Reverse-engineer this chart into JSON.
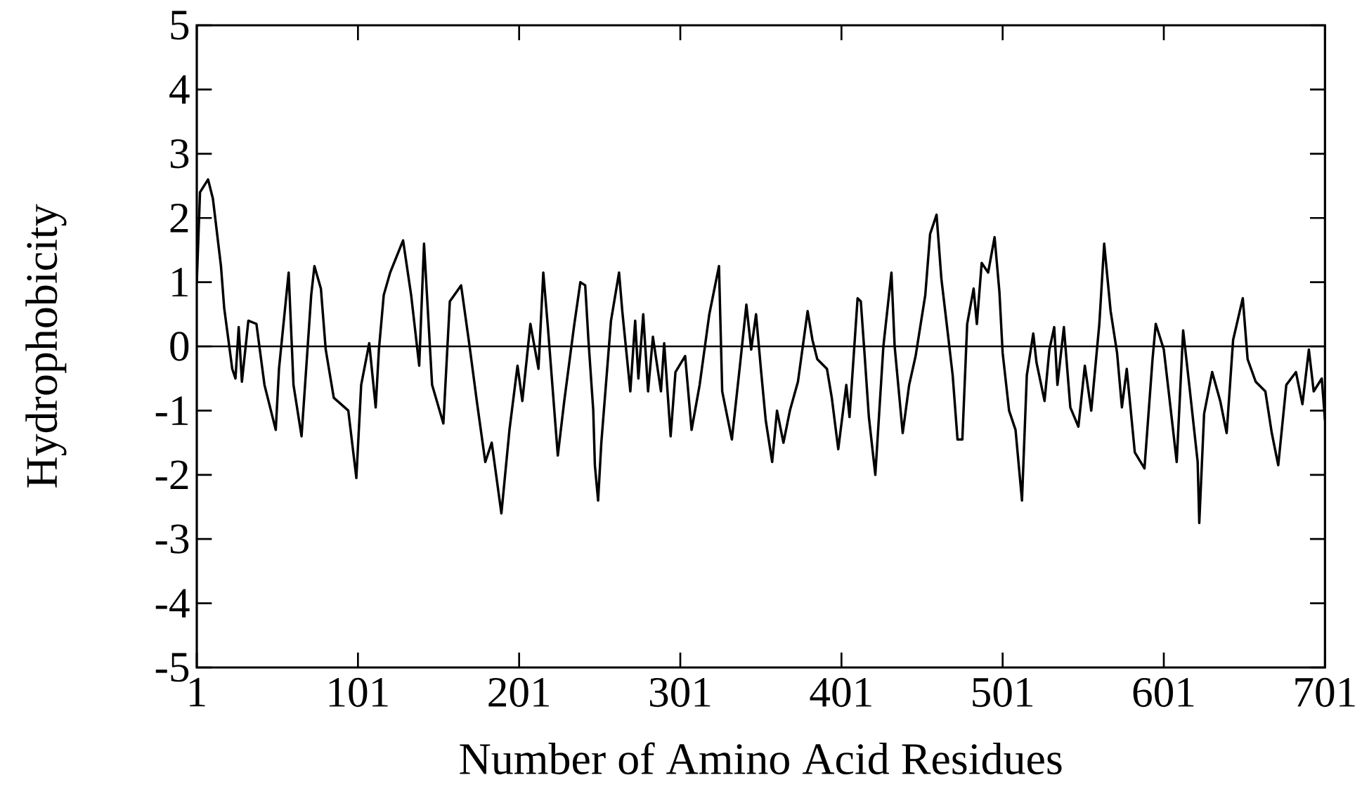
{
  "chart_data": {
    "type": "line",
    "xlabel": "Number of Amino Acid Residues",
    "ylabel": "Hydrophobicity",
    "xlim": [
      1,
      701
    ],
    "ylim": [
      -5,
      5
    ],
    "xticks": [
      1,
      101,
      201,
      301,
      401,
      501,
      601,
      701
    ],
    "yticks": [
      -5,
      -4,
      -3,
      -2,
      -1,
      0,
      1,
      2,
      3,
      4,
      5
    ],
    "grid": false,
    "marker": "none",
    "line_style": "solid",
    "ref_lines": [
      {
        "axis": "y",
        "value": 0,
        "color": "#000000",
        "line_style": "solid"
      }
    ],
    "series": [
      {
        "color": "#000000",
        "x": [
          1,
          3,
          8,
          11,
          16,
          18,
          23,
          25,
          27,
          29,
          33,
          38,
          43,
          50,
          52,
          58,
          61,
          66,
          72,
          74,
          78,
          81,
          86,
          95,
          100,
          103,
          108,
          112,
          114,
          117,
          121,
          129,
          134,
          139,
          142,
          147,
          154,
          158,
          165,
          170,
          175,
          180,
          184,
          190,
          195,
          200,
          203,
          208,
          213,
          216,
          219,
          225,
          229,
          235,
          239,
          242,
          244,
          247,
          248,
          250,
          252,
          258,
          263,
          265,
          270,
          273,
          275,
          278,
          281,
          284,
          289,
          291,
          295,
          298,
          304,
          308,
          313,
          319,
          325,
          327,
          333,
          338,
          342,
          345,
          348,
          351,
          354,
          358,
          361,
          365,
          369,
          374,
          380,
          383,
          386,
          392,
          395,
          399,
          404,
          406,
          411,
          413,
          415,
          418,
          422,
          427,
          432,
          434,
          439,
          443,
          447,
          453,
          456,
          460,
          463,
          467,
          470,
          473,
          476,
          479,
          483,
          485,
          488,
          492,
          496,
          499,
          501,
          505,
          509,
          513,
          516,
          520,
          522,
          527,
          530,
          533,
          535,
          539,
          543,
          548,
          552,
          556,
          561,
          564,
          568,
          572,
          575,
          578,
          583,
          589,
          594,
          596,
          601,
          604,
          609,
          613,
          617,
          622,
          623,
          626,
          631,
          636,
          640,
          644,
          650,
          653,
          658,
          664,
          668,
          672,
          677,
          683,
          687,
          691,
          694,
          699,
          701
        ],
        "values": [
          1.0,
          2.4,
          2.6,
          2.3,
          1.25,
          0.6,
          -0.35,
          -0.5,
          0.3,
          -0.55,
          0.4,
          0.35,
          -0.6,
          -1.3,
          -0.35,
          1.15,
          -0.6,
          -1.4,
          0.8,
          1.25,
          0.9,
          -0.05,
          -0.8,
          -1.0,
          -2.05,
          -0.6,
          0.05,
          -0.95,
          -0.05,
          0.8,
          1.15,
          1.65,
          0.8,
          -0.3,
          1.6,
          -0.6,
          -1.2,
          0.7,
          0.95,
          0.05,
          -0.9,
          -1.8,
          -1.5,
          -2.6,
          -1.3,
          -0.3,
          -0.85,
          0.35,
          -0.35,
          1.15,
          0.25,
          -1.7,
          -0.85,
          0.3,
          1.0,
          0.95,
          0.1,
          -1.0,
          -1.85,
          -2.4,
          -1.5,
          0.4,
          1.15,
          0.55,
          -0.7,
          0.4,
          -0.5,
          0.5,
          -0.7,
          0.15,
          -0.7,
          0.05,
          -1.4,
          -0.4,
          -0.15,
          -1.3,
          -0.6,
          0.5,
          1.25,
          -0.7,
          -1.45,
          -0.3,
          0.65,
          -0.05,
          0.5,
          -0.35,
          -1.15,
          -1.8,
          -1.0,
          -1.5,
          -1.0,
          -0.55,
          0.55,
          0.1,
          -0.2,
          -0.35,
          -0.8,
          -1.6,
          -0.6,
          -1.1,
          0.75,
          0.7,
          0.0,
          -1.1,
          -2.0,
          0.0,
          1.15,
          0.0,
          -1.35,
          -0.6,
          -0.15,
          0.8,
          1.75,
          2.05,
          1.05,
          0.2,
          -0.45,
          -1.45,
          -1.45,
          0.35,
          0.9,
          0.35,
          1.3,
          1.15,
          1.7,
          0.85,
          -0.1,
          -1.0,
          -1.3,
          -2.4,
          -0.45,
          0.2,
          -0.25,
          -0.85,
          -0.05,
          0.3,
          -0.6,
          0.3,
          -0.95,
          -1.25,
          -0.3,
          -1.0,
          0.35,
          1.6,
          0.55,
          -0.1,
          -0.95,
          -0.35,
          -1.65,
          -1.9,
          -0.2,
          0.35,
          -0.05,
          -0.7,
          -1.8,
          0.25,
          -0.65,
          -1.8,
          -2.75,
          -1.05,
          -0.4,
          -0.85,
          -1.35,
          0.1,
          0.75,
          -0.2,
          -0.55,
          -0.7,
          -1.35,
          -1.85,
          -0.6,
          -0.4,
          -0.9,
          -0.05,
          -0.7,
          -0.5,
          -1.15
        ]
      }
    ]
  }
}
